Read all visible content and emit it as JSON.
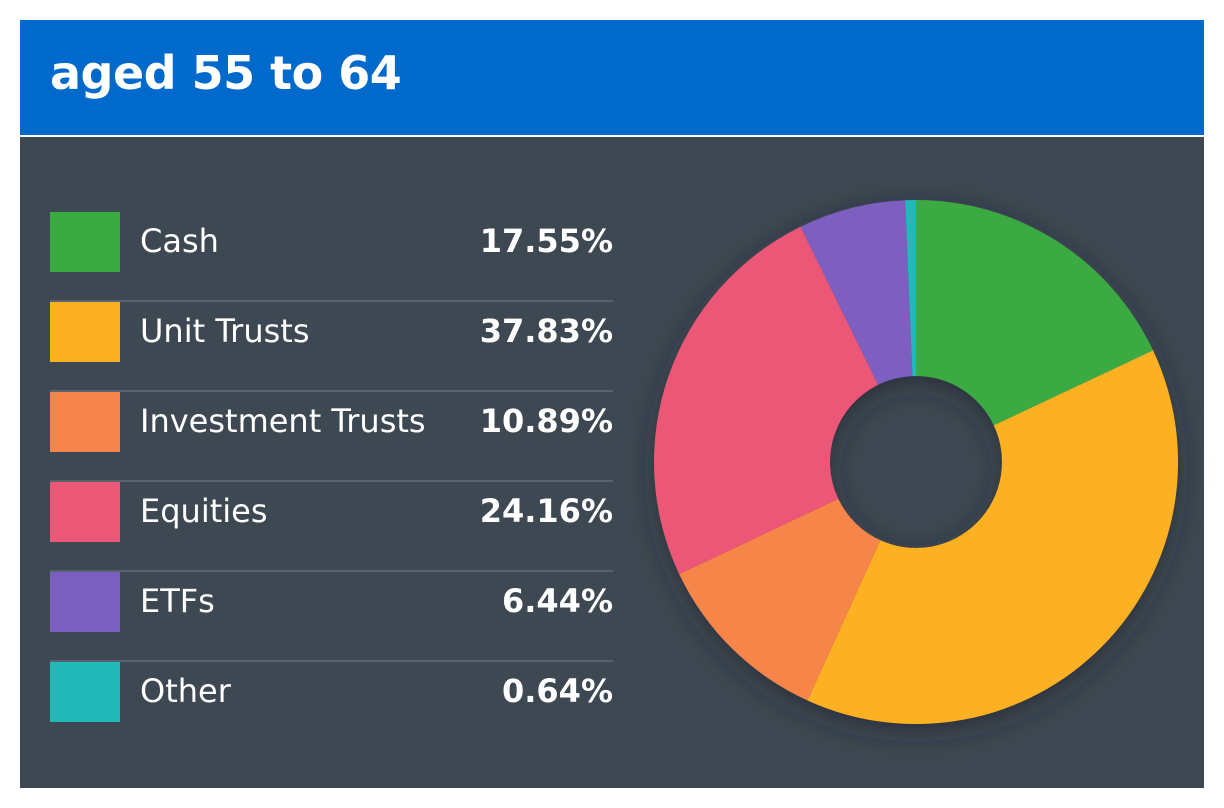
{
  "header": {
    "title": "aged 55 to 64"
  },
  "colors": {
    "header_bg": "#006acc",
    "card_bg": "#3d4852"
  },
  "chart_data": {
    "type": "pie",
    "donut": true,
    "start_angle_deg": 0,
    "direction": "clockwise",
    "categories": [
      "Cash",
      "Unit Trusts",
      "Investment Trusts",
      "Equities",
      "ETFs",
      "Other"
    ],
    "values": [
      17.55,
      37.83,
      10.89,
      24.16,
      6.44,
      0.64
    ],
    "value_labels": [
      "17.55%",
      "37.83%",
      "10.89%",
      "24.16%",
      "6.44%",
      "0.64%"
    ],
    "colors": [
      "#3aaa43",
      "#fdb022",
      "#f5854a",
      "#ec5677",
      "#7b5fc0",
      "#22b9b9"
    ],
    "legend_position": "left"
  }
}
